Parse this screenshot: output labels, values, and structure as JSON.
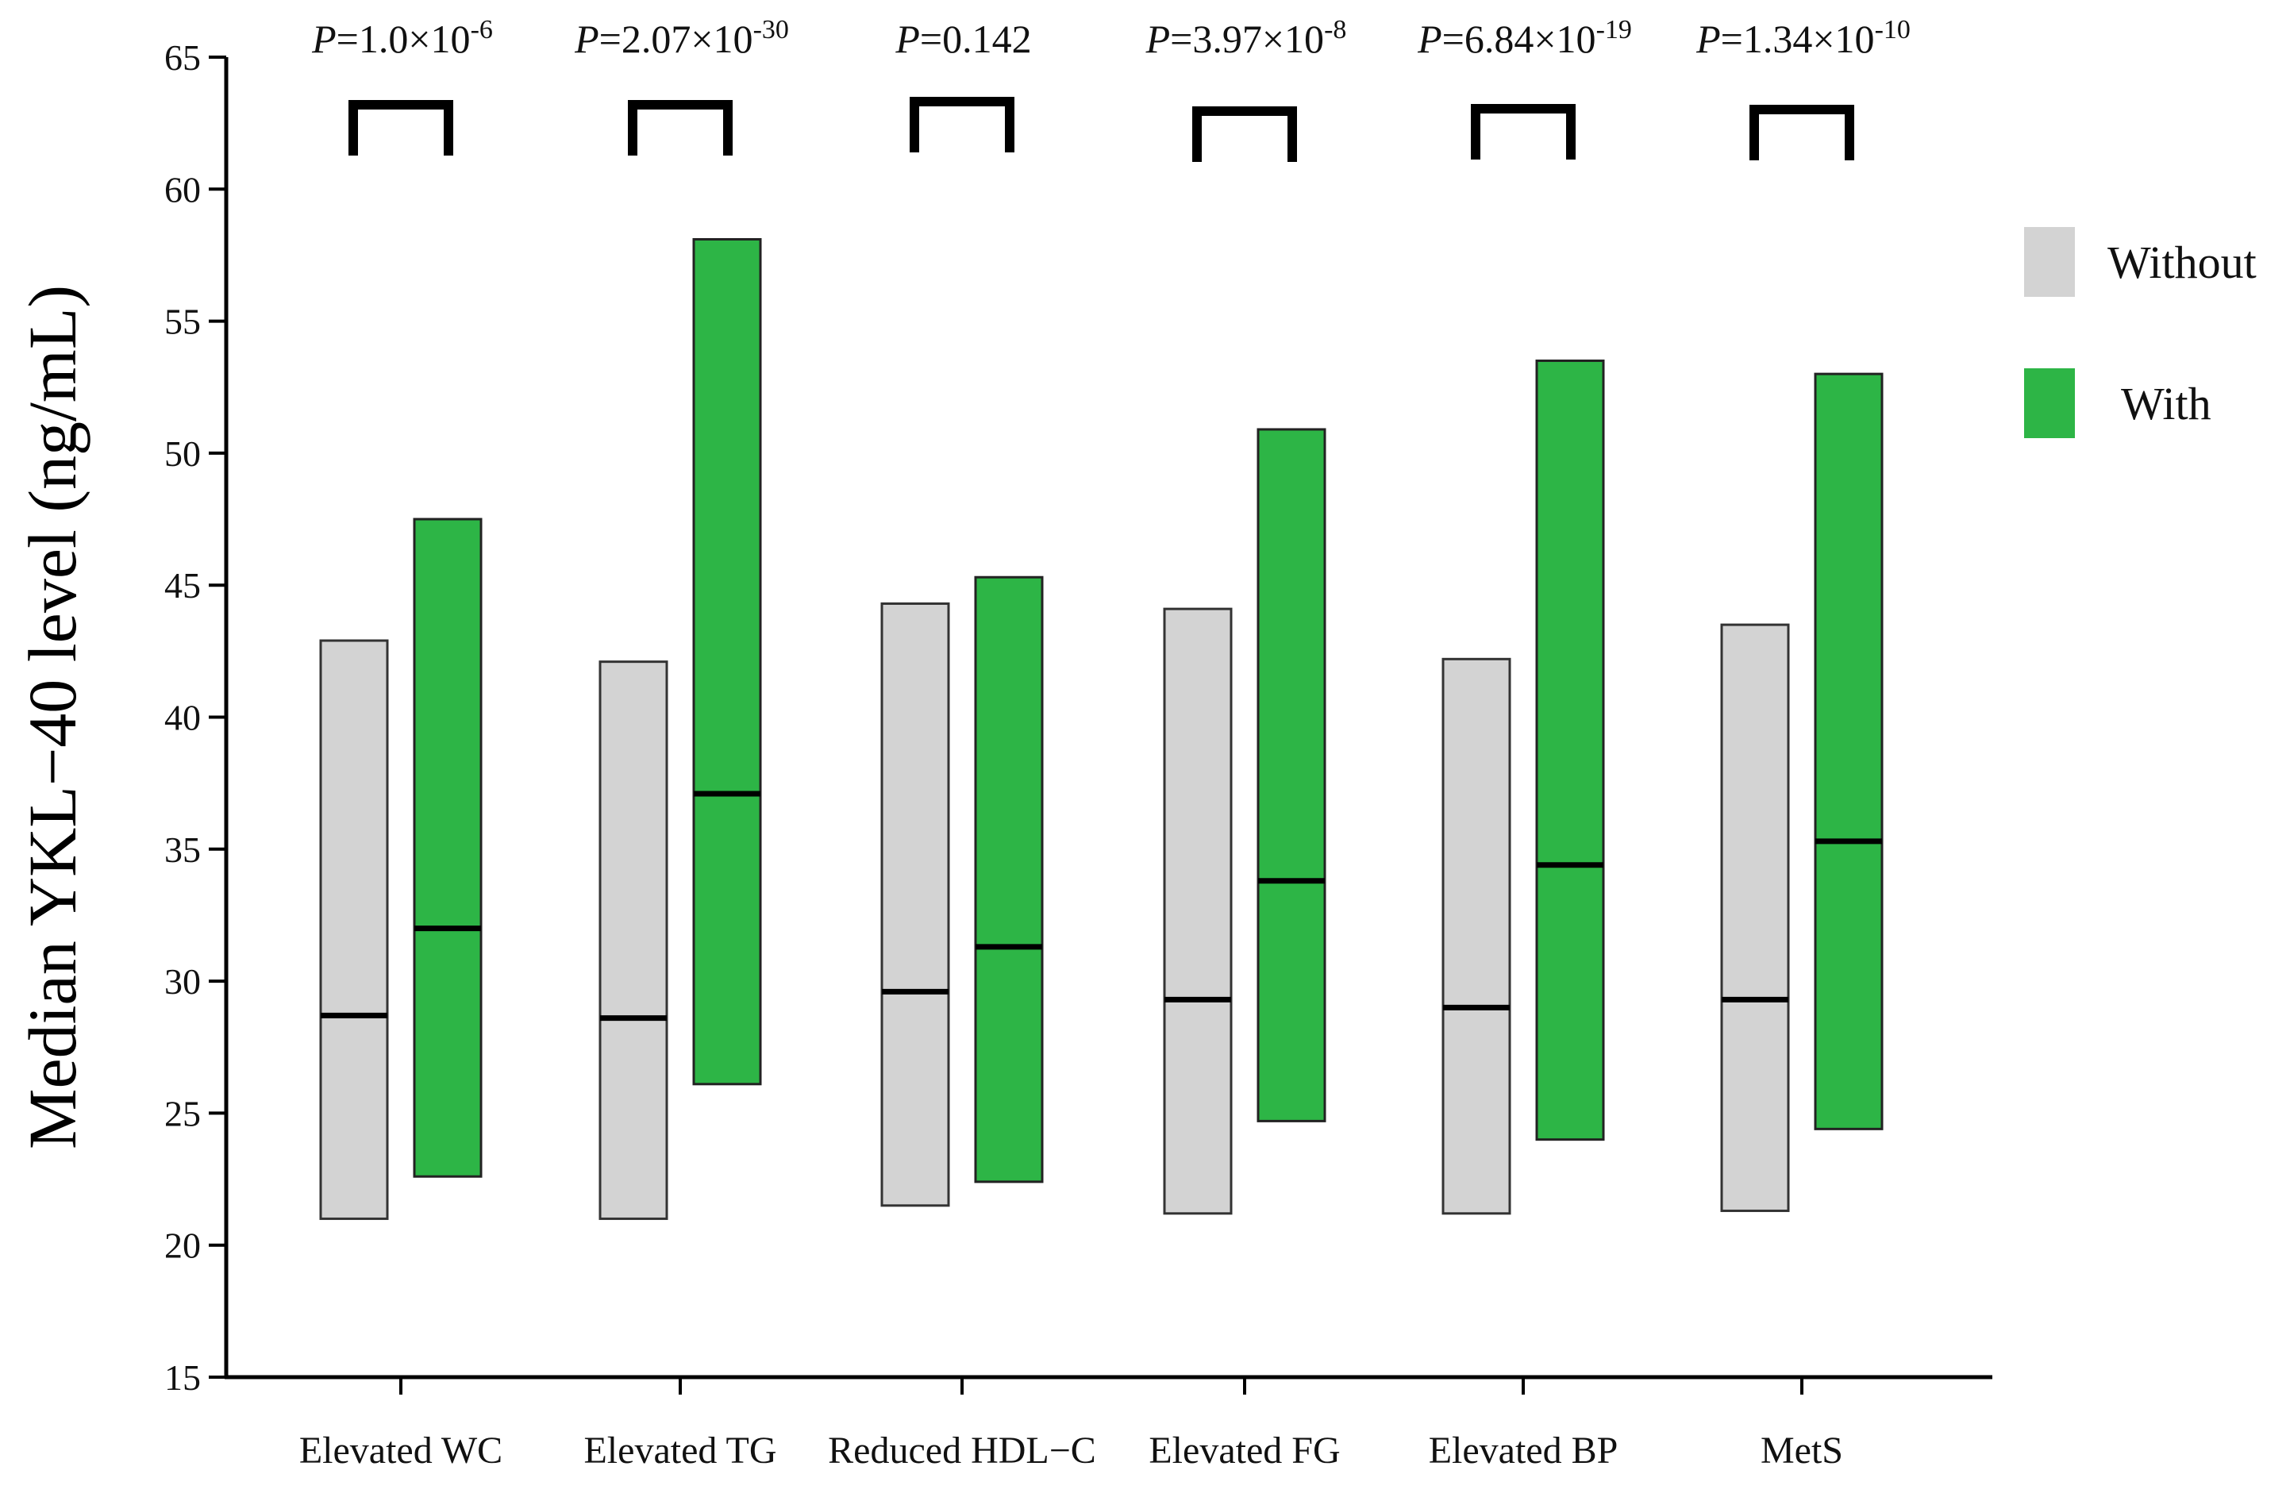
{
  "chart_data": {
    "type": "box",
    "ylabel": "Median YKL−40 level (ng/mL)",
    "xlabel": "",
    "ylim": [
      15,
      65
    ],
    "yticks": [
      15,
      20,
      25,
      30,
      35,
      40,
      45,
      50,
      55,
      60,
      65
    ],
    "categories": [
      "Elevated WC",
      "Elevated TG",
      "Reduced HDL−C",
      "Elevated FG",
      "Elevated BP",
      "MetS"
    ],
    "series": [
      {
        "name": "Without",
        "color": "#d3d3d3",
        "q1": [
          21.0,
          21.0,
          21.5,
          21.2,
          21.2,
          21.3
        ],
        "median": [
          28.7,
          28.6,
          29.6,
          29.3,
          29.0,
          29.3
        ],
        "q3": [
          42.9,
          42.1,
          44.3,
          44.1,
          42.2,
          43.5
        ]
      },
      {
        "name": "With",
        "color": "#2db546",
        "q1": [
          22.6,
          26.1,
          22.4,
          24.7,
          24.0,
          24.4
        ],
        "median": [
          32.0,
          37.1,
          31.3,
          33.8,
          34.4,
          35.3
        ],
        "q3": [
          47.5,
          58.1,
          45.3,
          50.9,
          53.5,
          53.0
        ]
      }
    ],
    "pvalues": [
      {
        "prefix": "P",
        "text": "=1.0×10",
        "exp": "-6"
      },
      {
        "prefix": "P",
        "text": "=2.07×10",
        "exp": "-30"
      },
      {
        "prefix": "P",
        "text": "=0.142",
        "exp": ""
      },
      {
        "prefix": "P",
        "text": "=3.97×10",
        "exp": "-8"
      },
      {
        "prefix": "P",
        "text": "=6.84×10",
        "exp": "-19"
      },
      {
        "prefix": "P",
        "text": "=1.34×10",
        "exp": "-10"
      }
    ],
    "legend": {
      "position": "right",
      "entries": [
        "Without",
        "With"
      ]
    }
  }
}
